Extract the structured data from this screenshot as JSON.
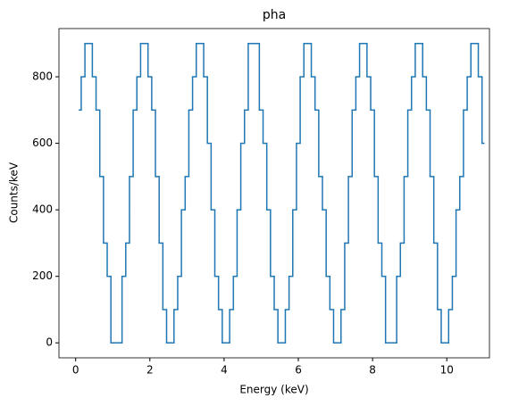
{
  "chart_data": {
    "type": "line",
    "drawstyle": "steps-mid",
    "title": "pha",
    "xlabel": "Energy (keV)",
    "ylabel": "Counts/keV",
    "x": [
      0.1,
      0.2,
      0.3,
      0.4,
      0.5,
      0.6,
      0.7,
      0.8,
      0.9,
      1.0,
      1.1,
      1.2,
      1.3,
      1.4,
      1.5,
      1.6,
      1.7,
      1.8,
      1.9,
      2.0,
      2.1,
      2.2,
      2.3,
      2.4,
      2.5,
      2.6,
      2.7,
      2.8,
      2.9,
      3.0,
      3.1,
      3.2,
      3.3,
      3.4,
      3.5,
      3.6,
      3.7,
      3.8,
      3.9,
      4.0,
      4.1,
      4.2,
      4.3,
      4.4,
      4.5,
      4.6,
      4.7,
      4.8,
      4.9,
      5.0,
      5.1,
      5.2,
      5.3,
      5.4,
      5.5,
      5.6,
      5.7,
      5.8,
      5.9,
      6.0,
      6.1,
      6.2,
      6.3,
      6.4,
      6.5,
      6.6,
      6.7,
      6.8,
      6.9,
      7.0,
      7.1,
      7.2,
      7.3,
      7.4,
      7.5,
      7.6,
      7.7,
      7.8,
      7.9,
      8.0,
      8.1,
      8.2,
      8.3,
      8.4,
      8.5,
      8.6,
      8.7,
      8.8,
      8.9,
      9.0,
      9.1,
      9.2,
      9.3,
      9.4,
      9.5,
      9.6,
      9.7,
      9.8,
      9.9,
      10.0,
      10.1,
      10.2,
      10.3,
      10.4,
      10.5,
      10.6,
      10.7,
      10.8,
      10.9,
      11.0
    ],
    "series": [
      {
        "color": "#1f77b4",
        "values": [
          700,
          800,
          900,
          900,
          800,
          700,
          500,
          300,
          200,
          0,
          0,
          0,
          200,
          300,
          500,
          700,
          800,
          900,
          900,
          800,
          700,
          500,
          300,
          100,
          0,
          0,
          100,
          200,
          400,
          500,
          700,
          800,
          900,
          900,
          800,
          600,
          400,
          200,
          100,
          0,
          0,
          100,
          200,
          400,
          600,
          700,
          900,
          900,
          900,
          700,
          600,
          400,
          200,
          100,
          0,
          0,
          100,
          200,
          400,
          600,
          800,
          900,
          900,
          800,
          700,
          500,
          400,
          200,
          100,
          0,
          0,
          100,
          300,
          500,
          700,
          800,
          900,
          900,
          800,
          700,
          500,
          300,
          200,
          0,
          0,
          0,
          200,
          300,
          500,
          700,
          800,
          900,
          900,
          800,
          700,
          500,
          300,
          100,
          0,
          0,
          100,
          200,
          400,
          500,
          700,
          800,
          900,
          900,
          800,
          600
        ]
      }
    ],
    "xlim": [
      -0.45,
      11.15
    ],
    "xticks": [
      0,
      2,
      4,
      6,
      8,
      10
    ],
    "ylim": [
      -45,
      945
    ],
    "yticks": [
      0,
      200,
      400,
      600,
      800
    ]
  }
}
